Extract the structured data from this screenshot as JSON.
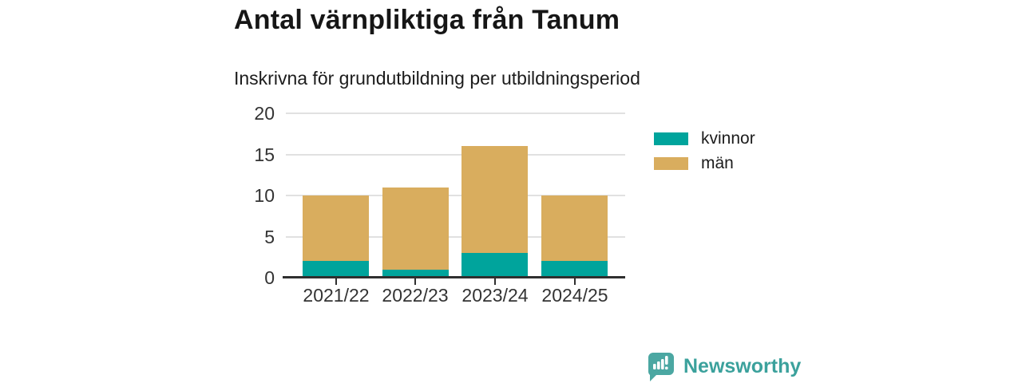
{
  "header": {
    "title": "Antal värnpliktiga från Tanum",
    "subtitle": "Inskrivna för grundutbildning per utbildningsperiod"
  },
  "chart_data": {
    "type": "bar",
    "stacked": true,
    "title": "Antal värnpliktiga från Tanum",
    "subtitle": "Inskrivna för grundutbildning per utbildningsperiod",
    "categories": [
      "2021/22",
      "2022/23",
      "2023/24",
      "2024/25"
    ],
    "series": [
      {
        "name": "kvinnor",
        "color": "#00a49c",
        "values": [
          2,
          1,
          3,
          2
        ]
      },
      {
        "name": "män",
        "color": "#d9ad5e",
        "values": [
          8,
          10,
          13,
          8
        ]
      }
    ],
    "totals": [
      10,
      11,
      16,
      10
    ],
    "yticks": [
      0,
      5,
      10,
      15,
      20
    ],
    "ylim": [
      0,
      20
    ],
    "xlabel": "",
    "ylabel": "",
    "grid": true,
    "legend_position": "right"
  },
  "branding": {
    "logo_text": "Newsworthy",
    "logo_icon": "bar-chart-speech-bubble-icon",
    "logo_text_color": "#3ba19c",
    "logo_icon_color": "#4ba7a2"
  },
  "colors": {
    "background": "#ffffff",
    "axis": "#2f2f2f",
    "gridline": "#e1e1e1",
    "tick_text": "#333333",
    "title_text": "#161616"
  }
}
